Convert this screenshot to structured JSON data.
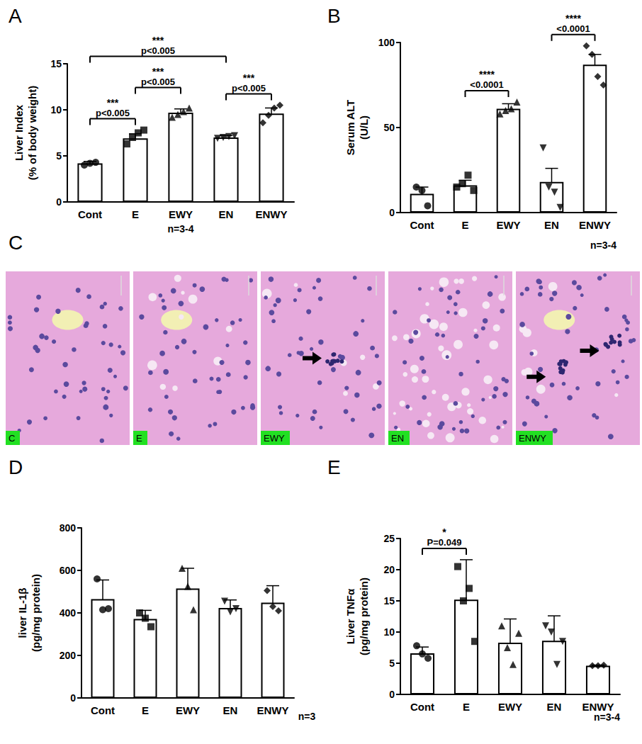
{
  "chart_data": [
    {
      "type": "bar",
      "panel_label": "A",
      "y_label": "Liver Index\n(% of body weight)",
      "categories": [
        "Cont",
        "E",
        "EWY",
        "EN",
        "ENWY"
      ],
      "values": [
        4.2,
        6.9,
        9.7,
        7.0,
        9.6
      ],
      "errors": [
        0.2,
        0.5,
        0.4,
        0.2,
        0.6
      ],
      "points": [
        [
          4.0,
          4.2,
          4.3
        ],
        [
          6.3,
          7.0,
          7.5,
          7.8
        ],
        [
          9.2,
          9.5,
          9.8,
          10.2
        ],
        [
          6.9,
          7.0,
          7.1,
          7.2
        ],
        [
          8.6,
          9.4,
          10.2,
          10.5
        ]
      ],
      "ylim": [
        0,
        15
      ],
      "yticks": [
        0,
        5,
        10,
        15
      ],
      "grid": false,
      "annotations": [
        {
          "from": "Cont",
          "to": "E",
          "stars": "***",
          "p": "p<0.005"
        },
        {
          "from": "E",
          "to": "EWY",
          "stars": "***",
          "p": "p<0.005"
        },
        {
          "from": "EN",
          "to": "ENWY",
          "stars": "***",
          "p": "p<0.005"
        },
        {
          "from": "Cont",
          "to": "EN",
          "stars": "***",
          "p": "p<0.005"
        }
      ],
      "sample_size": "n=3-4"
    },
    {
      "type": "bar",
      "panel_label": "B",
      "y_label": "Serum ALT\n(U/L)",
      "categories": [
        "Cont",
        "E",
        "EWY",
        "EN",
        "ENWY"
      ],
      "values": [
        11,
        16,
        61,
        18,
        87
      ],
      "errors": [
        4,
        3,
        3,
        8,
        6
      ],
      "points": [
        [
          15,
          13,
          4
        ],
        [
          15,
          17,
          22,
          13
        ],
        [
          58,
          60,
          61,
          65
        ],
        [
          38,
          15,
          12,
          3
        ],
        [
          98,
          93,
          80,
          75
        ]
      ],
      "ylim": [
        0,
        100
      ],
      "yticks": [
        0,
        50,
        100
      ],
      "grid": false,
      "annotations": [
        {
          "from": "E",
          "to": "EWY",
          "stars": "****",
          "p": "<0.0001"
        },
        {
          "from": "EN",
          "to": "ENWY",
          "stars": "****",
          "p": "<0.0001"
        }
      ],
      "sample_size": "n=3-4"
    },
    {
      "type": "bar",
      "panel_label": "D",
      "y_label": "liver IL-1β\n(pg/mg protein)",
      "categories": [
        "Cont",
        "E",
        "EWY",
        "EN",
        "ENWY"
      ],
      "values": [
        465,
        372,
        515,
        423,
        448
      ],
      "errors": [
        90,
        40,
        95,
        38,
        80
      ],
      "points": [
        [
          560,
          415,
          420
        ],
        [
          400,
          375,
          335
        ],
        [
          610,
          525,
          415
        ],
        [
          455,
          405,
          420
        ],
        [
          505,
          430,
          410
        ]
      ],
      "ylim": [
        0,
        800
      ],
      "yticks": [
        0,
        200,
        400,
        600,
        800
      ],
      "grid": false,
      "annotations": [],
      "sample_size": "n=3"
    },
    {
      "type": "bar",
      "panel_label": "E",
      "y_label": "Liver TNFα\n(pg/mg protein)",
      "categories": [
        "Cont",
        "E",
        "EWY",
        "EN",
        "ENWY"
      ],
      "values": [
        6.6,
        15.2,
        8.3,
        8.6,
        4.6
      ],
      "errors": [
        1.0,
        6.4,
        3.8,
        4.0,
        0.1
      ],
      "points": [
        [
          7.8,
          6.5,
          5.8
        ],
        [
          20.5,
          15,
          17,
          8.5
        ],
        [
          11,
          7.5,
          4.8,
          9.8
        ],
        [
          11,
          10,
          4.8,
          8.5
        ],
        [
          4.6,
          4.6,
          4.7
        ]
      ],
      "ylim": [
        0,
        25
      ],
      "yticks": [
        0,
        5,
        10,
        15,
        20,
        25
      ],
      "grid": false,
      "annotations": [
        {
          "from": "Cont",
          "to": "E",
          "stars": "*",
          "p": "P=0.049"
        }
      ],
      "sample_size": "n=3-4"
    }
  ],
  "image_panel": {
    "panel_label": "C",
    "images": [
      "C",
      "E",
      "EWY",
      "EN",
      "ENWY"
    ]
  }
}
